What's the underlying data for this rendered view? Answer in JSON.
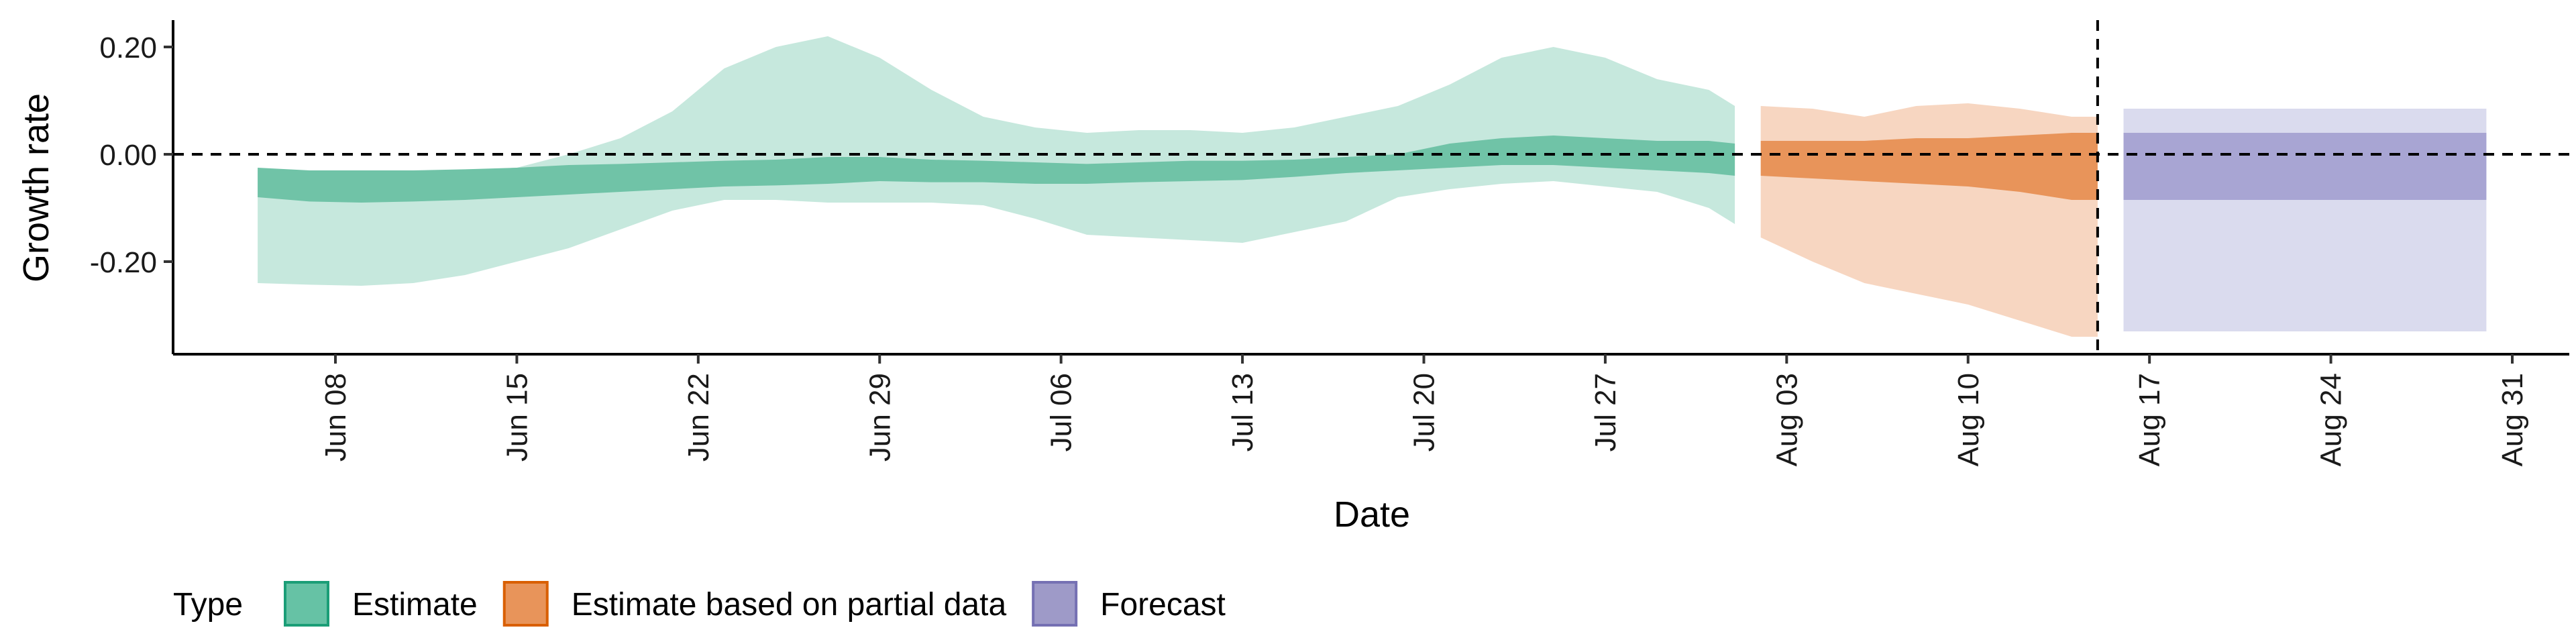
{
  "chart_data": {
    "type": "area",
    "xlabel": "Date",
    "ylabel": "Growth rate",
    "x_ticks": [
      "Jun 08",
      "Jun 15",
      "Jun 22",
      "Jun 29",
      "Jul 06",
      "Jul 13",
      "Jul 20",
      "Jul 27",
      "Aug 03",
      "Aug 10",
      "Aug 17",
      "Aug 24",
      "Aug 31"
    ],
    "y_ticks": [
      "0.20",
      "0.00",
      "-0.20"
    ],
    "y_tick_values": [
      0.2,
      0.0,
      -0.2
    ],
    "ylim": [
      -0.37,
      0.25
    ],
    "xlim": [
      "2020-06-01",
      "2020-09-01"
    ],
    "reference_lines": {
      "horizontal_y": 0,
      "vertical_date": "2020-08-15"
    },
    "legend": {
      "title": "Type",
      "position": "bottom",
      "items": [
        {
          "label": "Estimate",
          "color": "#66c2a5"
        },
        {
          "label": "Estimate based on partial data",
          "color": "#e8945a"
        },
        {
          "label": "Forecast",
          "color": "#9e9ac8"
        }
      ]
    },
    "series": [
      {
        "name": "Estimate",
        "colors": {
          "outer": "#c6e8dd",
          "inner": "#70c3a7"
        },
        "points": [
          [
            "2020-06-05",
            -0.24,
            -0.03,
            -0.08,
            -0.025
          ],
          [
            "2020-06-07",
            -0.243,
            -0.032,
            -0.088,
            -0.03
          ],
          [
            "2020-06-09",
            -0.245,
            -0.033,
            -0.09,
            -0.03
          ],
          [
            "2020-06-11",
            -0.24,
            -0.03,
            -0.088,
            -0.03
          ],
          [
            "2020-06-13",
            -0.225,
            -0.03,
            -0.085,
            -0.028
          ],
          [
            "2020-06-15",
            -0.2,
            -0.025,
            -0.08,
            -0.025
          ],
          [
            "2020-06-17",
            -0.175,
            0.0,
            -0.075,
            -0.02
          ],
          [
            "2020-06-19",
            -0.14,
            0.03,
            -0.07,
            -0.018
          ],
          [
            "2020-06-21",
            -0.105,
            0.08,
            -0.065,
            -0.015
          ],
          [
            "2020-06-23",
            -0.085,
            0.16,
            -0.06,
            -0.012
          ],
          [
            "2020-06-25",
            -0.085,
            0.2,
            -0.058,
            -0.01
          ],
          [
            "2020-06-27",
            -0.09,
            0.22,
            -0.055,
            -0.005
          ],
          [
            "2020-06-29",
            -0.09,
            0.18,
            -0.05,
            -0.005
          ],
          [
            "2020-07-01",
            -0.09,
            0.12,
            -0.052,
            -0.01
          ],
          [
            "2020-07-03",
            -0.095,
            0.07,
            -0.052,
            -0.012
          ],
          [
            "2020-07-05",
            -0.12,
            0.05,
            -0.055,
            -0.015
          ],
          [
            "2020-07-07",
            -0.15,
            0.04,
            -0.055,
            -0.018
          ],
          [
            "2020-07-09",
            -0.155,
            0.045,
            -0.052,
            -0.015
          ],
          [
            "2020-07-11",
            -0.16,
            0.045,
            -0.05,
            -0.012
          ],
          [
            "2020-07-13",
            -0.165,
            0.04,
            -0.048,
            -0.012
          ],
          [
            "2020-07-15",
            -0.145,
            0.05,
            -0.042,
            -0.01
          ],
          [
            "2020-07-17",
            -0.125,
            0.07,
            -0.035,
            -0.005
          ],
          [
            "2020-07-19",
            -0.08,
            0.09,
            -0.03,
            0.0
          ],
          [
            "2020-07-21",
            -0.065,
            0.13,
            -0.025,
            0.02
          ],
          [
            "2020-07-23",
            -0.055,
            0.18,
            -0.02,
            0.03
          ],
          [
            "2020-07-25",
            -0.05,
            0.2,
            -0.02,
            0.035
          ],
          [
            "2020-07-27",
            -0.06,
            0.18,
            -0.025,
            0.03
          ],
          [
            "2020-07-29",
            -0.07,
            0.14,
            -0.03,
            0.025
          ],
          [
            "2020-07-31",
            -0.1,
            0.12,
            -0.035,
            0.025
          ],
          [
            "2020-08-01",
            -0.13,
            0.09,
            -0.04,
            0.02
          ]
        ]
      },
      {
        "name": "Estimate based on partial data",
        "colors": {
          "outer": "#f7d6c1",
          "inner": "#e8945a"
        },
        "points": [
          [
            "2020-08-02",
            -0.155,
            0.09,
            -0.04,
            0.025
          ],
          [
            "2020-08-04",
            -0.2,
            0.085,
            -0.045,
            0.025
          ],
          [
            "2020-08-06",
            -0.24,
            0.07,
            -0.05,
            0.025
          ],
          [
            "2020-08-08",
            -0.26,
            0.09,
            -0.055,
            0.03
          ],
          [
            "2020-08-10",
            -0.28,
            0.095,
            -0.06,
            0.03
          ],
          [
            "2020-08-12",
            -0.31,
            0.085,
            -0.07,
            0.035
          ],
          [
            "2020-08-14",
            -0.34,
            0.07,
            -0.085,
            0.04
          ],
          [
            "2020-08-15",
            -0.34,
            0.07,
            -0.085,
            0.04
          ]
        ]
      },
      {
        "name": "Forecast",
        "colors": {
          "outer": "#dadbee",
          "inner": "#a8a5d3"
        },
        "points": [
          [
            "2020-08-16",
            -0.33,
            0.085,
            -0.085,
            0.04
          ],
          [
            "2020-08-30",
            -0.33,
            0.085,
            -0.085,
            0.04
          ]
        ]
      }
    ],
    "point_fields": [
      "date",
      "outer_lower",
      "outer_upper",
      "inner_lower",
      "inner_upper"
    ]
  }
}
